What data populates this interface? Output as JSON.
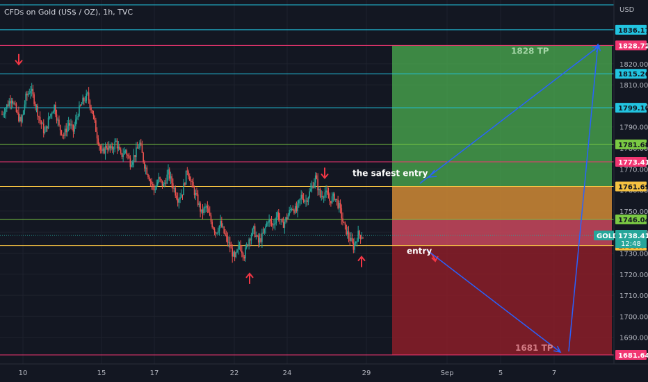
{
  "title": "CFDs on Gold (US$ / OZ), 1h, TVC",
  "currency": "USD",
  "colors": {
    "background": "#131722",
    "candle_up": "#26a69a",
    "candle_down": "#ef5350",
    "magenta": "#f23672",
    "cyan": "#22c4e0",
    "green": "#7ac943",
    "yellow": "#f5c242",
    "arrow_red": "#f23645",
    "arrow_blue": "#2962ff",
    "tp_zone": "#4caf50",
    "sl_zone": "#8b1d28",
    "orange_zone": "#d08a35",
    "pink_zone": "#c9485d"
  },
  "chart_data": {
    "type": "candlestick",
    "title": "CFDs on Gold (US$ / OZ), 1h, TVC",
    "ylim": [
      1677,
      1849
    ],
    "y_ticks": [
      1690,
      1700,
      1710,
      1720,
      1730,
      1740,
      1750,
      1760,
      1770,
      1780,
      1790,
      1800,
      1810,
      1820
    ],
    "x_ticks": [
      "10",
      "15",
      "17",
      "22",
      "24",
      "29",
      "Sep",
      "5",
      "7"
    ],
    "current_price": {
      "label": "GOLD",
      "value": "1738.41",
      "countdown": "12:48"
    },
    "horizontal_levels": [
      {
        "value": 1848,
        "color": "cyan",
        "label": ""
      },
      {
        "value": 1836.17,
        "color": "cyan",
        "label": "1836.17"
      },
      {
        "value": 1828.72,
        "color": "magenta",
        "label": "1828.72"
      },
      {
        "value": 1815.26,
        "color": "cyan",
        "label": "1815.26"
      },
      {
        "value": 1799.1,
        "color": "cyan",
        "label": "1799.10"
      },
      {
        "value": 1781.68,
        "color": "green",
        "label": "1781.68"
      },
      {
        "value": 1773.41,
        "color": "magenta",
        "label": "1773.41"
      },
      {
        "value": 1761.69,
        "color": "yellow",
        "label": "1761.69"
      },
      {
        "value": 1746.04,
        "color": "green",
        "label": "1746.04"
      },
      {
        "value": 1733.6,
        "color": "yellow",
        "label": "1733.60"
      },
      {
        "value": 1681.64,
        "color": "magenta",
        "label": "1681.64"
      }
    ],
    "zones": [
      {
        "from": 1761.69,
        "to": 1828.72,
        "color": "tp_zone"
      },
      {
        "from": 1746.04,
        "to": 1761.69,
        "color": "orange_zone"
      },
      {
        "from": 1733.6,
        "to": 1746.04,
        "color": "pink_zone"
      },
      {
        "from": 1681.64,
        "to": 1733.6,
        "color": "sl_zone"
      }
    ],
    "annotations": [
      {
        "text": "1828 TP",
        "value": 1826
      },
      {
        "text": "the safest entry",
        "value": 1768
      },
      {
        "text": "entry",
        "value": 1731
      },
      {
        "text": "1681 TP",
        "value": 1685
      }
    ],
    "red_arrows": [
      {
        "direction": "down",
        "value": 1822
      },
      {
        "direction": "down",
        "value": 1768
      },
      {
        "direction": "up",
        "value": 1718
      },
      {
        "direction": "up",
        "value": 1726
      }
    ],
    "price_path": [
      1796,
      1800,
      1804,
      1797,
      1792,
      1804,
      1808,
      1801,
      1793,
      1787,
      1795,
      1800,
      1790,
      1786,
      1792,
      1788,
      1797,
      1802,
      1805,
      1797,
      1786,
      1777,
      1781,
      1779,
      1783,
      1776,
      1779,
      1773,
      1777,
      1782,
      1772,
      1766,
      1760,
      1765,
      1762,
      1768,
      1762,
      1756,
      1759,
      1770,
      1762,
      1756,
      1749,
      1752,
      1745,
      1740,
      1744,
      1738,
      1733,
      1727,
      1734,
      1729,
      1737,
      1741,
      1735,
      1739,
      1746,
      1743,
      1749,
      1743,
      1747,
      1752,
      1750,
      1757,
      1755,
      1760,
      1766,
      1757,
      1759,
      1755,
      1757,
      1752,
      1743,
      1738,
      1733,
      1739,
      1738
    ]
  }
}
